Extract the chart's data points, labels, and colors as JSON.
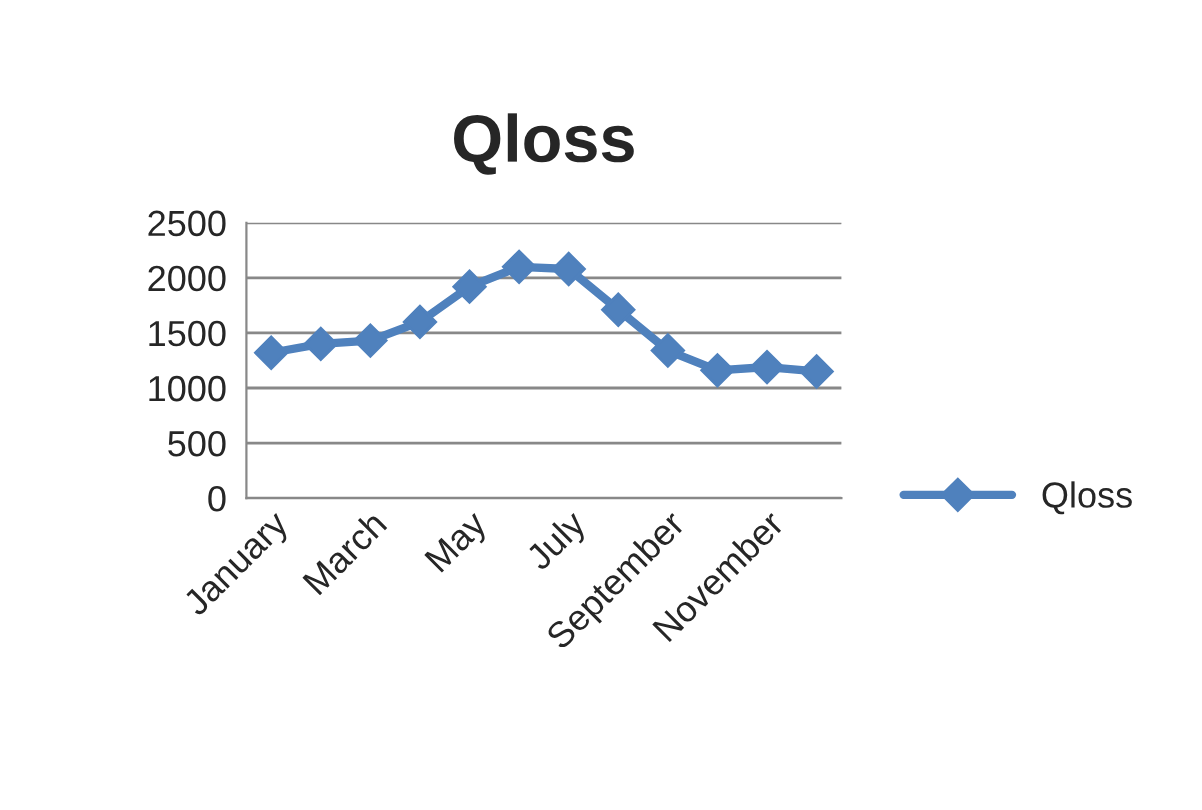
{
  "chart_data": {
    "type": "line",
    "title": "Qloss",
    "categories": [
      "January",
      null,
      "March",
      null,
      "May",
      null,
      "July",
      null,
      "September",
      null,
      "November",
      null
    ],
    "series": [
      {
        "name": "Qloss",
        "color": "#4f81bd",
        "values": [
          1320,
          1400,
          1430,
          1600,
          1920,
          2100,
          2080,
          1710,
          1340,
          1160,
          1190,
          1150
        ]
      }
    ],
    "ylim": [
      0,
      2500
    ],
    "yticks": [
      0,
      500,
      1000,
      1500,
      2000,
      2500
    ],
    "grid": "y",
    "legend": "right",
    "marker": "diamond",
    "line_style": "solid"
  }
}
